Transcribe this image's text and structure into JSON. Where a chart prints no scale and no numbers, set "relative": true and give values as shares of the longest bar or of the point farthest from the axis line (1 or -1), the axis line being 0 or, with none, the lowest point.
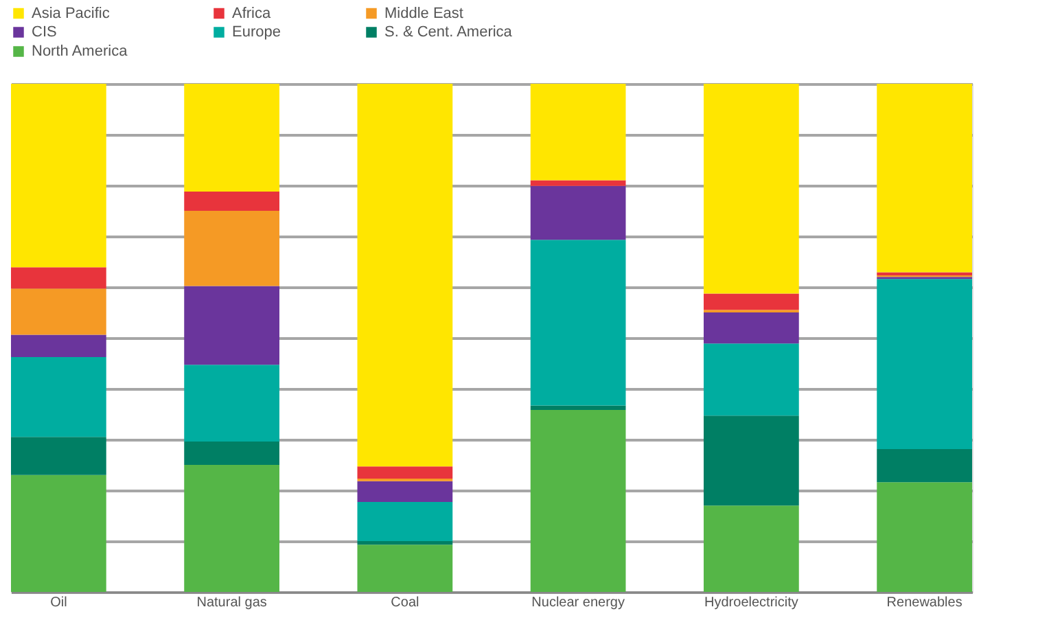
{
  "chart_data": {
    "type": "bar",
    "stacked": true,
    "relative": true,
    "grid": "y",
    "legend": "top left",
    "categories": [
      "Oil",
      "Natural gas",
      "Coal",
      "Nuclear energy",
      "Hydroelectricity",
      "Renewables"
    ],
    "series": [
      {
        "name": "North America",
        "color": "#55b647",
        "values": [
          0.23,
          0.25,
          0.093,
          0.358,
          0.17,
          0.216
        ]
      },
      {
        "name": "S. & Cent. America",
        "color": "#007f64",
        "values": [
          0.075,
          0.046,
          0.007,
          0.009,
          0.177,
          0.065
        ]
      },
      {
        "name": "Europe",
        "color": "#00ada0",
        "values": [
          0.157,
          0.151,
          0.077,
          0.326,
          0.142,
          0.335
        ]
      },
      {
        "name": "CIS",
        "color": "#6a359c",
        "values": [
          0.044,
          0.155,
          0.041,
          0.106,
          0.061,
          0.004
        ]
      },
      {
        "name": "Middle East",
        "color": "#f59a25",
        "values": [
          0.091,
          0.148,
          0.005,
          0,
          0.005,
          0.003
        ]
      },
      {
        "name": "Africa",
        "color": "#e8343c",
        "values": [
          0.042,
          0.038,
          0.024,
          0.011,
          0.032,
          0.006
        ]
      },
      {
        "name": "Asia Pacific",
        "color": "#ffe600",
        "values": [
          0.361,
          0.212,
          0.753,
          0.19,
          0.413,
          0.371
        ]
      }
    ]
  }
}
